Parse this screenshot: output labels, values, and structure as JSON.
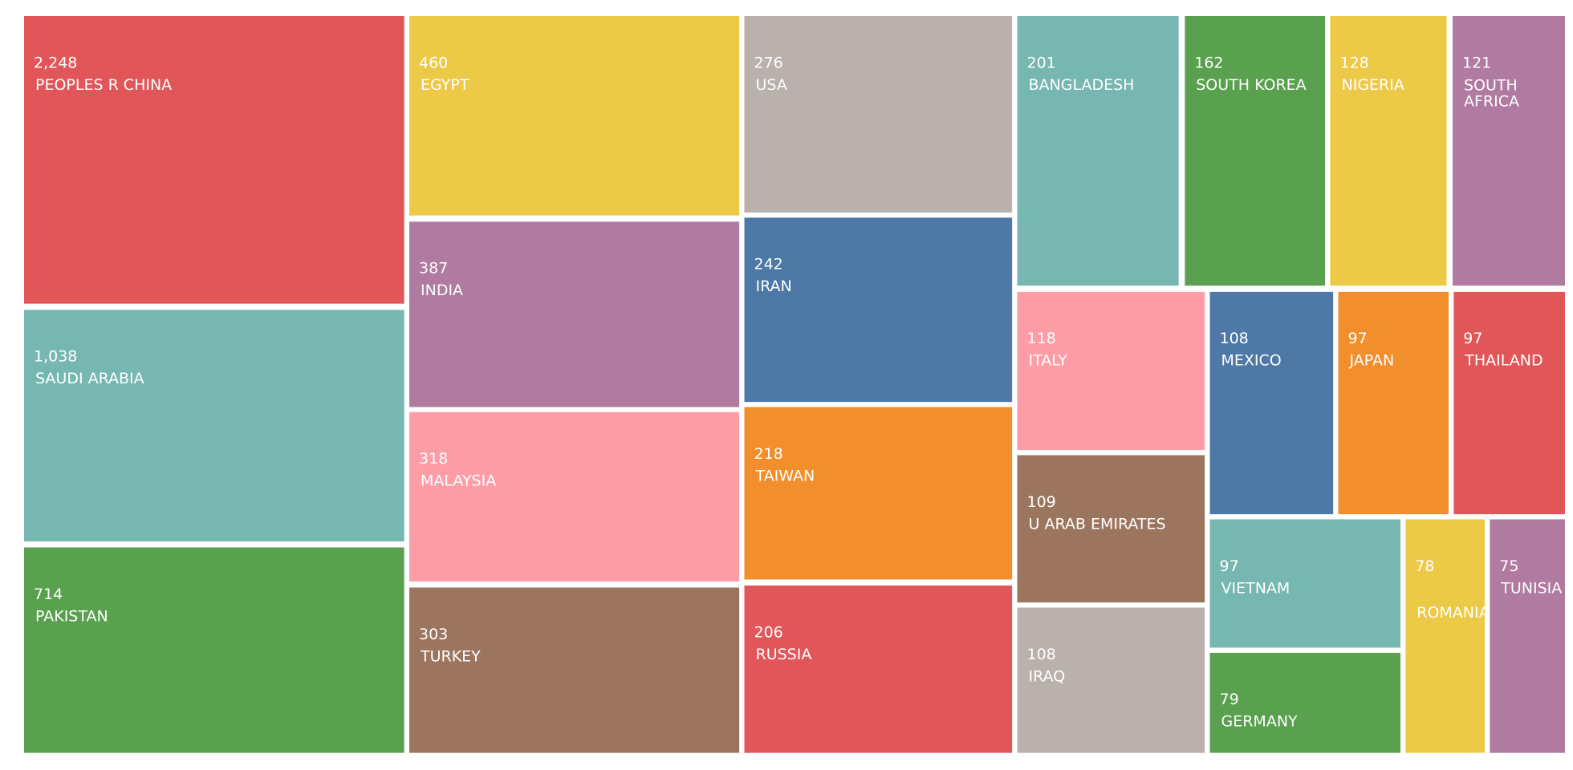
{
  "chart_data": {
    "type": "treemap",
    "categories": [
      "PEOPLES R CHINA",
      "SAUDI ARABIA",
      "PAKISTAN",
      "EGYPT",
      "INDIA",
      "MALAYSIA",
      "TURKEY",
      "USA",
      "IRAN",
      "TAIWAN",
      "RUSSIA",
      "BANGLADESH",
      "SOUTH KOREA",
      "NIGERIA",
      "SOUTH AFRICA",
      "ITALY",
      "U ARAB EMIRATES",
      "IRAQ",
      "MEXICO",
      "JAPAN",
      "THAILAND",
      "VIETNAM",
      "GERMANY",
      "ROMANIA",
      "TUNISIA"
    ],
    "values": [
      2248,
      1038,
      714,
      460,
      387,
      318,
      303,
      276,
      242,
      218,
      206,
      201,
      162,
      128,
      121,
      118,
      109,
      108,
      108,
      97,
      97,
      97,
      79,
      78,
      75
    ],
    "value_labels": [
      "2,248",
      "1,038",
      "714",
      "460",
      "387",
      "318",
      "303",
      "276",
      "242",
      "218",
      "206",
      "201",
      "162",
      "128",
      "121",
      "118",
      "109",
      "108",
      "108",
      "97",
      "97",
      "97",
      "79",
      "78",
      "75"
    ],
    "colors": [
      "#e15759",
      "#76b7b2",
      "#59a14f",
      "#edc948",
      "#b07aa1",
      "#ff9da7",
      "#9c755f",
      "#bab0ac",
      "#4e79a7",
      "#f28e2b",
      "#e15759",
      "#76b7b2",
      "#59a14f",
      "#edc948",
      "#b07aa1",
      "#ff9da7",
      "#9c755f",
      "#bab0ac",
      "#4e79a7",
      "#f28e2b",
      "#e15759",
      "#76b7b2",
      "#59a14f",
      "#edc948",
      "#b07aa1"
    ]
  }
}
